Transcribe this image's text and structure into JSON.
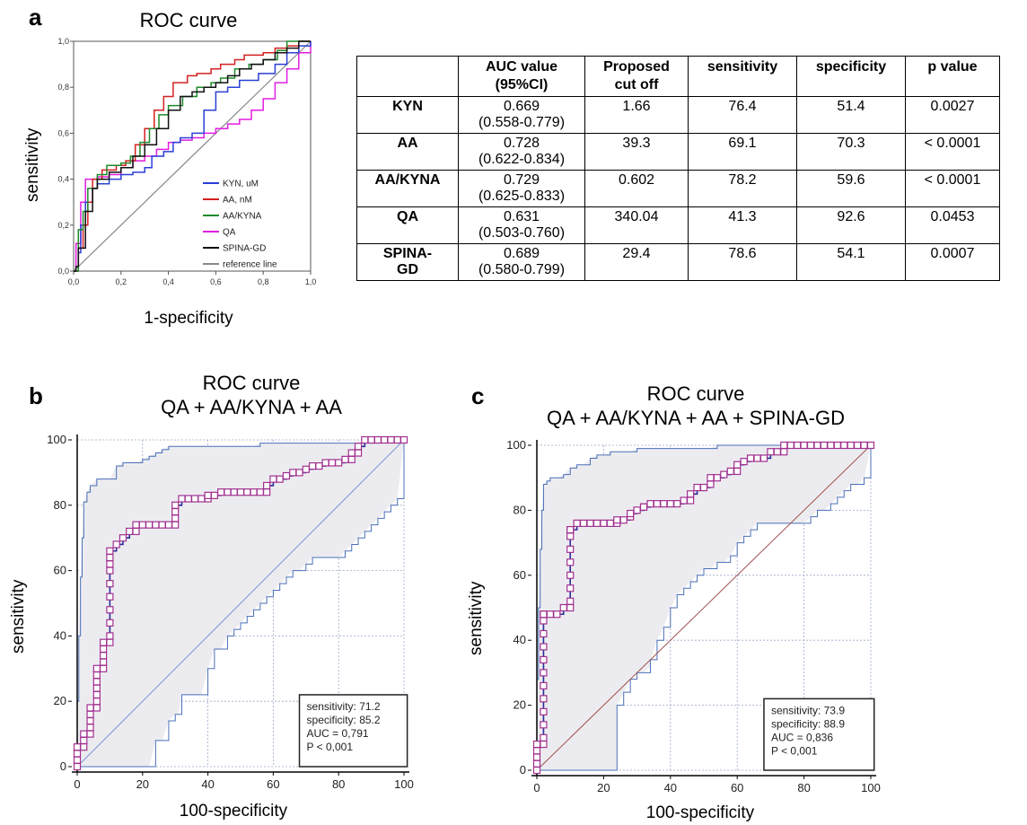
{
  "panels": {
    "a": "a",
    "b": "b",
    "c": "c"
  },
  "chart_data": [
    {
      "type": "line",
      "title": "ROC curve",
      "xlabel": "1-specificity",
      "ylabel": "sensitivity",
      "xlim": [
        0,
        1
      ],
      "ylim": [
        0,
        1
      ],
      "xticks": [
        "0,0",
        "0,2",
        "0,4",
        "0,6",
        "0,8",
        "1,0"
      ],
      "yticks": [
        "0,0",
        "0,2",
        "0,4",
        "0,6",
        "0,8",
        "1,0"
      ],
      "legend_position": "bottom-right",
      "series": [
        {
          "name": "KYN, uM",
          "color": "#2b3fd6",
          "x": [
            0,
            0.02,
            0.03,
            0.05,
            0.08,
            0.1,
            0.15,
            0.2,
            0.25,
            0.3,
            0.33,
            0.38,
            0.42,
            0.45,
            0.5,
            0.55,
            0.6,
            0.65,
            0.7,
            0.78,
            0.85,
            0.9,
            0.95,
            1
          ],
          "y": [
            0,
            0.08,
            0.2,
            0.3,
            0.36,
            0.38,
            0.4,
            0.42,
            0.43,
            0.45,
            0.5,
            0.52,
            0.56,
            0.58,
            0.6,
            0.7,
            0.78,
            0.8,
            0.83,
            0.86,
            0.9,
            0.95,
            0.98,
            1
          ]
        },
        {
          "name": "AA, nM",
          "color": "#d42020",
          "x": [
            0,
            0.02,
            0.04,
            0.06,
            0.08,
            0.12,
            0.18,
            0.22,
            0.26,
            0.3,
            0.34,
            0.38,
            0.42,
            0.48,
            0.52,
            0.58,
            0.62,
            0.68,
            0.72,
            0.8,
            0.85,
            0.9,
            0.95,
            1
          ],
          "y": [
            0,
            0.1,
            0.2,
            0.3,
            0.4,
            0.44,
            0.46,
            0.48,
            0.55,
            0.62,
            0.7,
            0.76,
            0.82,
            0.85,
            0.86,
            0.88,
            0.9,
            0.92,
            0.94,
            0.95,
            0.97,
            0.98,
            1,
            1
          ]
        },
        {
          "name": "AA/KYNA",
          "color": "#1f8a2a",
          "x": [
            0,
            0.02,
            0.04,
            0.06,
            0.1,
            0.14,
            0.2,
            0.24,
            0.28,
            0.32,
            0.36,
            0.4,
            0.46,
            0.52,
            0.58,
            0.62,
            0.68,
            0.74,
            0.8,
            0.86,
            0.9,
            0.95,
            1
          ],
          "y": [
            0,
            0.18,
            0.26,
            0.36,
            0.42,
            0.46,
            0.47,
            0.5,
            0.56,
            0.62,
            0.68,
            0.72,
            0.76,
            0.8,
            0.82,
            0.84,
            0.88,
            0.9,
            0.92,
            0.96,
            1,
            1,
            1
          ]
        },
        {
          "name": "QA",
          "color": "#e01ee0",
          "x": [
            0,
            0.01,
            0.03,
            0.05,
            0.1,
            0.15,
            0.2,
            0.25,
            0.3,
            0.35,
            0.4,
            0.45,
            0.5,
            0.55,
            0.6,
            0.65,
            0.7,
            0.75,
            0.8,
            0.85,
            0.9,
            0.95,
            1
          ],
          "y": [
            0,
            0.12,
            0.3,
            0.4,
            0.41,
            0.42,
            0.45,
            0.48,
            0.5,
            0.53,
            0.56,
            0.57,
            0.58,
            0.6,
            0.62,
            0.64,
            0.66,
            0.7,
            0.75,
            0.82,
            0.88,
            0.95,
            1
          ]
        },
        {
          "name": "SPINA-GD",
          "color": "#111111",
          "x": [
            0,
            0.01,
            0.02,
            0.05,
            0.08,
            0.1,
            0.15,
            0.2,
            0.25,
            0.3,
            0.35,
            0.4,
            0.45,
            0.5,
            0.55,
            0.6,
            0.65,
            0.7,
            0.75,
            0.8,
            0.85,
            0.9,
            0.95,
            1
          ],
          "y": [
            0,
            0.02,
            0.1,
            0.26,
            0.36,
            0.4,
            0.43,
            0.45,
            0.5,
            0.55,
            0.62,
            0.7,
            0.76,
            0.78,
            0.8,
            0.82,
            0.85,
            0.88,
            0.9,
            0.92,
            0.95,
            0.97,
            1,
            1
          ]
        },
        {
          "name": "reference line",
          "color": "#888888",
          "x": [
            0,
            1
          ],
          "y": [
            0,
            1
          ]
        }
      ]
    },
    {
      "type": "line",
      "title": "ROC curve",
      "subtitle": "QA + AA/KYNA + AA",
      "xlabel": "100-specificity",
      "ylabel": "sensitivity",
      "xlim": [
        0,
        100
      ],
      "ylim": [
        0,
        100
      ],
      "xticks": [
        0,
        20,
        40,
        60,
        80,
        100
      ],
      "yticks": [
        0,
        20,
        40,
        60,
        80,
        100
      ],
      "grid": true,
      "annotation": [
        "sensitivity: 71.2",
        "specificity: 85.2",
        "AUC = 0,791",
        "P < 0,001"
      ],
      "roc": {
        "x": [
          0,
          0,
          0,
          0,
          2,
          2,
          2,
          4,
          4,
          4,
          4,
          4,
          6,
          6,
          6,
          6,
          6,
          6,
          6,
          8,
          8,
          8,
          8,
          8,
          10,
          10,
          10,
          10,
          10,
          10,
          10,
          10,
          10,
          10,
          12,
          14,
          16,
          18,
          18,
          20,
          22,
          24,
          26,
          28,
          30,
          30,
          30,
          30,
          32,
          34,
          36,
          38,
          40,
          40,
          42,
          44,
          46,
          48,
          50,
          52,
          54,
          56,
          58,
          58,
          60,
          62,
          64,
          66,
          68,
          70,
          72,
          74,
          76,
          78,
          80,
          82,
          84,
          84,
          86,
          86,
          88,
          90,
          92,
          94,
          96,
          98,
          100
        ],
        "y": [
          0,
          2,
          4,
          6,
          6,
          8,
          10,
          10,
          12,
          14,
          16,
          18,
          18,
          20,
          22,
          24,
          26,
          28,
          30,
          30,
          32,
          34,
          36,
          38,
          38,
          40,
          44,
          48,
          52,
          56,
          60,
          62,
          64,
          66,
          68,
          70,
          72,
          72,
          74,
          74,
          74,
          74,
          74,
          74,
          74,
          76,
          78,
          80,
          82,
          82,
          82,
          82,
          82,
          83,
          83,
          84,
          84,
          84,
          84,
          84,
          84,
          84,
          84,
          86,
          88,
          88,
          89,
          90,
          90,
          91,
          92,
          92,
          93,
          93,
          93,
          94,
          94,
          96,
          96,
          98,
          100,
          100,
          100,
          100,
          100,
          100,
          100
        ]
      },
      "ci_upper": {
        "x": [
          0,
          0,
          0.5,
          1,
          1.5,
          2,
          3,
          4,
          6,
          8,
          10,
          12,
          14,
          16,
          18,
          20,
          22,
          24,
          26,
          28,
          30,
          32,
          34,
          36,
          38,
          40,
          42,
          44,
          46,
          48,
          50,
          52,
          54,
          56,
          58,
          60,
          62,
          64,
          66,
          68,
          70,
          72,
          74,
          76,
          78,
          80,
          82,
          84,
          86,
          88,
          90,
          92,
          94,
          96,
          98,
          100
        ],
        "y": [
          0,
          20,
          40,
          58,
          70,
          81,
          84,
          86,
          88,
          88,
          88,
          92,
          93,
          93,
          93,
          94,
          95,
          96,
          97,
          98,
          98,
          98,
          98,
          98,
          98,
          98,
          98,
          98,
          98,
          98,
          98,
          98,
          98,
          99,
          99,
          99,
          99,
          99,
          99,
          99,
          99,
          99,
          99,
          99,
          99,
          99,
          99,
          99,
          99,
          99,
          99,
          100,
          100,
          100,
          100,
          100
        ]
      },
      "ci_lower": {
        "x": [
          0,
          5,
          10,
          14,
          16,
          18,
          20,
          22,
          24,
          25,
          26,
          28,
          30,
          31,
          32,
          34,
          36,
          38,
          40,
          42,
          44,
          46,
          48,
          50,
          52,
          54,
          56,
          58,
          60,
          62,
          64,
          66,
          68,
          70,
          72,
          74,
          76,
          78,
          80,
          82,
          84,
          86,
          88,
          90,
          92,
          94,
          96,
          98,
          100
        ],
        "y": [
          0,
          0,
          0,
          0,
          0,
          0,
          0,
          0,
          8,
          8,
          8,
          14,
          16,
          16,
          22,
          22,
          22,
          22,
          30,
          36,
          36,
          40,
          42,
          44,
          46,
          48,
          50,
          52,
          54,
          56,
          58,
          60,
          60,
          62,
          64,
          64,
          64,
          64,
          64,
          66,
          68,
          70,
          72,
          74,
          76,
          78,
          80,
          82,
          100
        ]
      }
    },
    {
      "type": "line",
      "title": "ROC curve",
      "subtitle": "QA + AA/KYNA + AA + SPINA-GD",
      "xlabel": "100-specificity",
      "ylabel": "sensitivity",
      "xlim": [
        0,
        100
      ],
      "ylim": [
        0,
        100
      ],
      "xticks": [
        0,
        20,
        40,
        60,
        80,
        100
      ],
      "yticks": [
        0,
        20,
        40,
        60,
        80,
        100
      ],
      "grid": true,
      "annotation": [
        "sensitivity: 73.9",
        "specificity: 88.9",
        "AUC = 0,836",
        "P < 0,001"
      ],
      "roc": {
        "x": [
          0,
          0,
          0,
          0,
          0,
          2,
          2,
          2,
          2,
          2,
          2,
          2,
          2,
          2,
          2,
          2,
          2,
          2,
          4,
          6,
          8,
          10,
          10,
          10,
          10,
          10,
          10,
          10,
          10,
          10,
          10,
          10,
          12,
          14,
          16,
          18,
          20,
          22,
          24,
          24,
          26,
          28,
          28,
          30,
          32,
          32,
          34,
          36,
          38,
          40,
          42,
          44,
          46,
          46,
          48,
          50,
          52,
          52,
          54,
          56,
          58,
          60,
          60,
          62,
          64,
          66,
          68,
          70,
          72,
          74,
          74,
          76,
          78,
          80,
          82,
          84,
          86,
          88,
          90,
          92,
          94,
          96,
          98,
          100
        ],
        "y": [
          0,
          2,
          4,
          6,
          8,
          8,
          10,
          14,
          18,
          22,
          26,
          30,
          34,
          38,
          42,
          46,
          48,
          48,
          48,
          48,
          50,
          50,
          52,
          56,
          60,
          64,
          68,
          72,
          74,
          74,
          74,
          74,
          76,
          76,
          76,
          76,
          76,
          76,
          76,
          77,
          77,
          78,
          79,
          80,
          81,
          81,
          82,
          82,
          82,
          82,
          82,
          83,
          83,
          85,
          87,
          87,
          88,
          90,
          90,
          91,
          92,
          92,
          94,
          95,
          96,
          96,
          96,
          98,
          98,
          98,
          100,
          100,
          100,
          100,
          100,
          100,
          100,
          100,
          100,
          100,
          100,
          100,
          100,
          100
        ]
      },
      "ci_upper": {
        "x": [
          0,
          0,
          0.5,
          1,
          1.5,
          2,
          3,
          4,
          6,
          8,
          10,
          12,
          14,
          16,
          18,
          20,
          22,
          24,
          26,
          28,
          30,
          32,
          34,
          36,
          38,
          40,
          42,
          44,
          46,
          48,
          50,
          52,
          54,
          56,
          58,
          60,
          62,
          64,
          66,
          68,
          70,
          72,
          74,
          76,
          78,
          80,
          82,
          84,
          86,
          88,
          90,
          92,
          94,
          96,
          98,
          100
        ],
        "y": [
          0,
          28,
          50,
          68,
          80,
          88,
          89,
          90,
          90,
          91,
          93,
          94,
          94,
          96,
          97,
          97,
          98,
          98,
          98,
          98,
          99,
          99,
          99,
          99,
          99,
          99,
          99,
          99,
          99,
          99,
          99,
          99,
          100,
          100,
          100,
          100,
          100,
          100,
          100,
          100,
          100,
          100,
          100,
          100,
          100,
          100,
          100,
          100,
          100,
          100,
          100,
          100,
          100,
          100,
          100,
          100
        ]
      },
      "ci_lower": {
        "x": [
          0,
          5,
          10,
          14,
          16,
          18,
          20,
          22,
          24,
          24,
          26,
          28,
          30,
          32,
          34,
          34,
          36,
          38,
          40,
          42,
          44,
          46,
          48,
          50,
          52,
          54,
          56,
          58,
          60,
          62,
          64,
          66,
          68,
          70,
          72,
          74,
          76,
          78,
          80,
          82,
          84,
          86,
          88,
          90,
          92,
          94,
          96,
          98,
          100
        ],
        "y": [
          0,
          0,
          0,
          0,
          0,
          0,
          0,
          0,
          0,
          20,
          24,
          28,
          30,
          30,
          32,
          34,
          40,
          44,
          50,
          54,
          56,
          58,
          60,
          62,
          62,
          64,
          64,
          66,
          70,
          72,
          74,
          76,
          76,
          76,
          76,
          76,
          76,
          76,
          76,
          78,
          80,
          80,
          82,
          84,
          86,
          88,
          88,
          90,
          100
        ]
      }
    }
  ],
  "table": {
    "headers": [
      "",
      "AUC value (95%CI)",
      "Proposed cut off",
      "sensitivity",
      "specificity",
      "p value"
    ],
    "rows": [
      {
        "name": "KYN",
        "auc": "0.669",
        "ci": "(0.558-0.779)",
        "cutoff": "1.66",
        "sens": "76.4",
        "spec": "51.4",
        "p": "0.0027"
      },
      {
        "name": "AA",
        "auc": "0.728",
        "ci": "(0.622-0.834)",
        "cutoff": "39.3",
        "sens": "69.1",
        "spec": "70.3",
        "p": "< 0.0001"
      },
      {
        "name": "AA/KYNA",
        "auc": "0.729",
        "ci": "(0.625-0.833)",
        "cutoff": "0.602",
        "sens": "78.2",
        "spec": "59.6",
        "p": "< 0.0001"
      },
      {
        "name": "QA",
        "auc": "0.631",
        "ci": "(0.503-0.760)",
        "cutoff": "340.04",
        "sens": "41.3",
        "spec": "92.6",
        "p": "0.0453"
      },
      {
        "name": "SPINA-GD",
        "auc": "0.689",
        "ci": "(0.580-0.799)",
        "cutoff": "29.4",
        "sens": "78.6",
        "spec": "54.1",
        "p": "0.0007"
      }
    ]
  },
  "colors": {
    "roc_line": "#2c2c9a",
    "roc_marker": "#a0308f",
    "ci_fill": "#ececf0",
    "ci_line": "#4a6fb8",
    "grid": "#9aa8c8",
    "diagonal_b": "#7b95d0",
    "diagonal_c": "#a05050"
  }
}
